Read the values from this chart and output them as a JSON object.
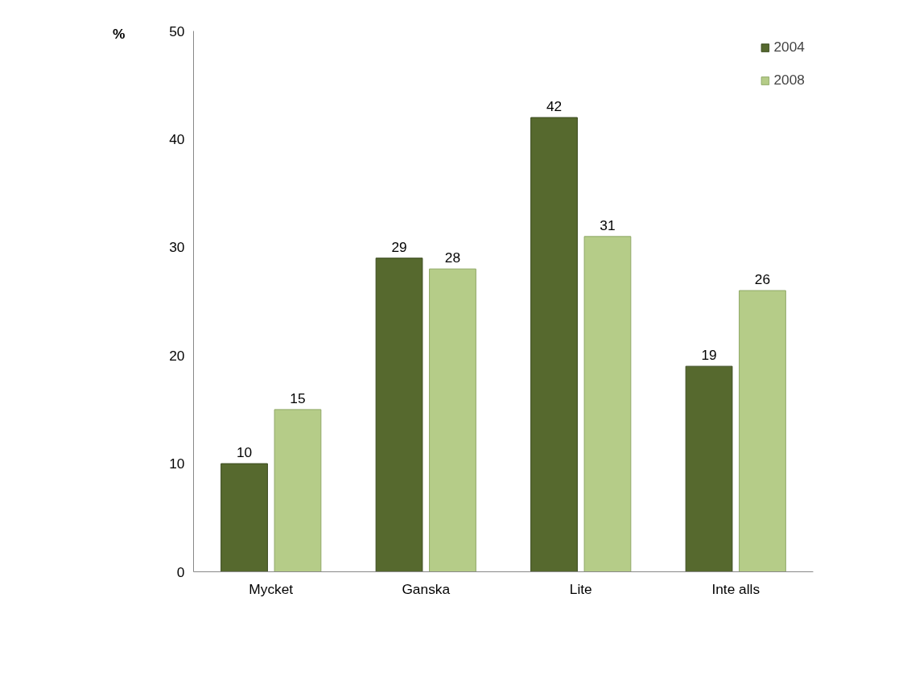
{
  "chart_data": {
    "type": "bar",
    "ylabel": "%",
    "categories": [
      "Mycket",
      "Ganska",
      "Lite",
      "Inte alls"
    ],
    "series": [
      {
        "name": "2004",
        "color": "#56692e",
        "values": [
          10,
          29,
          42,
          19
        ]
      },
      {
        "name": "2008",
        "color": "#b5cc88",
        "values": [
          15,
          28,
          31,
          26
        ]
      }
    ],
    "ylim": [
      0,
      50
    ],
    "yticks": [
      0,
      10,
      20,
      30,
      40,
      50
    ],
    "grid": false,
    "legend": "top right",
    "data_labels": true
  }
}
